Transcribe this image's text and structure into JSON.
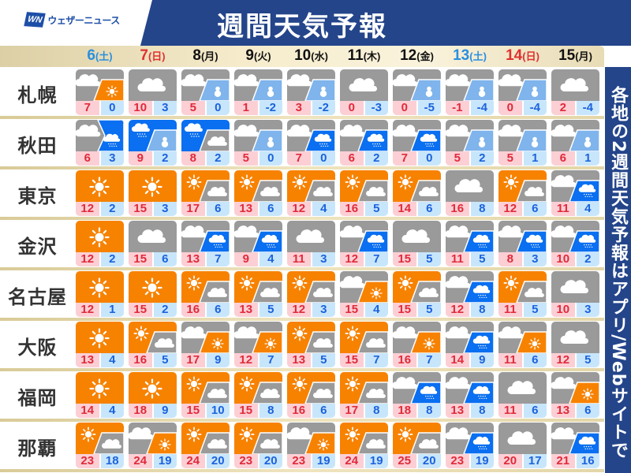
{
  "header": {
    "logo_mark": "WN",
    "logo_text": "ウェザーニュース",
    "title": "週間天気予報"
  },
  "banner": "各地の2週間天気予報はアプリ/Webサイトで",
  "colors": {
    "sun": "#f78200",
    "cloud": "#9a9a9a",
    "rain": "#0a6ff0",
    "snow": "#7fb4ec",
    "saturday": "#2a8fe0",
    "sunday": "#e03030",
    "header_bg": "#24458a"
  },
  "dates": [
    {
      "day": "6",
      "dow": "(土)",
      "type": "sat"
    },
    {
      "day": "7",
      "dow": "(日)",
      "type": "sun"
    },
    {
      "day": "8",
      "dow": "(月)",
      "type": "wd"
    },
    {
      "day": "9",
      "dow": "(火)",
      "type": "wd"
    },
    {
      "day": "10",
      "dow": "(水)",
      "type": "wd"
    },
    {
      "day": "11",
      "dow": "(木)",
      "type": "wd"
    },
    {
      "day": "12",
      "dow": "(金)",
      "type": "wd"
    },
    {
      "day": "13",
      "dow": "(土)",
      "type": "sat"
    },
    {
      "day": "14",
      "dow": "(日)",
      "type": "sun"
    },
    {
      "day": "15",
      "dow": "(月)",
      "type": "wd"
    }
  ],
  "cities": [
    {
      "name": "札幌",
      "days": [
        [
          "cloud/sun",
          "7",
          "0"
        ],
        [
          "cloud",
          "10",
          "3"
        ],
        [
          "cloud/snow",
          "5",
          "0"
        ],
        [
          "cloud/snow",
          "1",
          "-2"
        ],
        [
          "cloud/snow",
          "3",
          "-2"
        ],
        [
          "cloud",
          "0",
          "-3"
        ],
        [
          "cloud/snow",
          "0",
          "-5"
        ],
        [
          "cloud/snow",
          "-1",
          "-4"
        ],
        [
          "cloud/snow",
          "0",
          "-4"
        ],
        [
          "cloud",
          "2",
          "-4"
        ]
      ]
    },
    {
      "name": "秋田",
      "days": [
        [
          "cloud>rain",
          "6",
          "3"
        ],
        [
          "rain/snow",
          "9",
          "2"
        ],
        [
          "rain/cloud",
          "8",
          "2"
        ],
        [
          "cloud/snow",
          "5",
          "0"
        ],
        [
          "cloud/rain",
          "7",
          "0"
        ],
        [
          "cloud/rain",
          "6",
          "2"
        ],
        [
          "cloud/rain",
          "7",
          "0"
        ],
        [
          "cloud/snow",
          "5",
          "2"
        ],
        [
          "cloud/snow",
          "5",
          "1"
        ],
        [
          "cloud/snow",
          "6",
          "1"
        ]
      ]
    },
    {
      "name": "東京",
      "days": [
        [
          "sun",
          "12",
          "2"
        ],
        [
          "sun",
          "15",
          "3"
        ],
        [
          "sun/cloud",
          "17",
          "6"
        ],
        [
          "sun/cloud",
          "13",
          "6"
        ],
        [
          "sun/cloud",
          "12",
          "4"
        ],
        [
          "sun/cloud",
          "16",
          "5"
        ],
        [
          "sun/cloud",
          "14",
          "6"
        ],
        [
          "cloud",
          "16",
          "8"
        ],
        [
          "sun/cloud",
          "12",
          "6"
        ],
        [
          "cloud/rain",
          "11",
          "4"
        ]
      ]
    },
    {
      "name": "金沢",
      "days": [
        [
          "sun",
          "12",
          "2"
        ],
        [
          "cloud",
          "15",
          "6"
        ],
        [
          "cloud/rain",
          "13",
          "7"
        ],
        [
          "cloud/rain",
          "9",
          "4"
        ],
        [
          "cloud",
          "11",
          "3"
        ],
        [
          "cloud/rain",
          "12",
          "7"
        ],
        [
          "cloud",
          "15",
          "5"
        ],
        [
          "cloud/rain",
          "11",
          "5"
        ],
        [
          "cloud/rain",
          "8",
          "3"
        ],
        [
          "cloud/rain",
          "10",
          "2"
        ]
      ]
    },
    {
      "name": "名古屋",
      "days": [
        [
          "sun",
          "12",
          "1"
        ],
        [
          "sun",
          "15",
          "2"
        ],
        [
          "sun/cloud",
          "16",
          "6"
        ],
        [
          "sun/cloud",
          "13",
          "5"
        ],
        [
          "sun/cloud",
          "12",
          "3"
        ],
        [
          "cloud/sun",
          "15",
          "4"
        ],
        [
          "sun/cloud",
          "15",
          "5"
        ],
        [
          "cloud/rain",
          "12",
          "8"
        ],
        [
          "sun/cloud",
          "11",
          "5"
        ],
        [
          "cloud",
          "10",
          "3"
        ]
      ]
    },
    {
      "name": "大阪",
      "days": [
        [
          "sun",
          "13",
          "4"
        ],
        [
          "sun/cloud",
          "16",
          "5"
        ],
        [
          "cloud/sun",
          "17",
          "9"
        ],
        [
          "cloud/sun",
          "12",
          "7"
        ],
        [
          "sun/cloud",
          "13",
          "5"
        ],
        [
          "sun/cloud",
          "15",
          "7"
        ],
        [
          "cloud/sun",
          "16",
          "7"
        ],
        [
          "cloud/rain",
          "14",
          "9"
        ],
        [
          "cloud/sun",
          "11",
          "6"
        ],
        [
          "cloud",
          "12",
          "5"
        ]
      ]
    },
    {
      "name": "福岡",
      "days": [
        [
          "sun",
          "14",
          "4"
        ],
        [
          "sun",
          "18",
          "9"
        ],
        [
          "sun/cloud",
          "15",
          "10"
        ],
        [
          "sun/cloud",
          "15",
          "8"
        ],
        [
          "sun/cloud",
          "16",
          "6"
        ],
        [
          "sun/cloud",
          "17",
          "8"
        ],
        [
          "cloud/rain",
          "18",
          "8"
        ],
        [
          "cloud/rain",
          "13",
          "8"
        ],
        [
          "cloud",
          "11",
          "6"
        ],
        [
          "cloud/sun",
          "13",
          "6"
        ]
      ]
    },
    {
      "name": "那覇",
      "days": [
        [
          "sun/cloud",
          "23",
          "18"
        ],
        [
          "cloud/sun",
          "24",
          "19"
        ],
        [
          "sun/cloud",
          "24",
          "20"
        ],
        [
          "sun/cloud",
          "23",
          "20"
        ],
        [
          "cloud/sun",
          "23",
          "19"
        ],
        [
          "sun/cloud",
          "24",
          "19"
        ],
        [
          "sun/cloud",
          "25",
          "20"
        ],
        [
          "cloud/rain",
          "23",
          "19"
        ],
        [
          "cloud",
          "20",
          "17"
        ],
        [
          "cloud/rain",
          "21",
          "16"
        ]
      ]
    }
  ]
}
